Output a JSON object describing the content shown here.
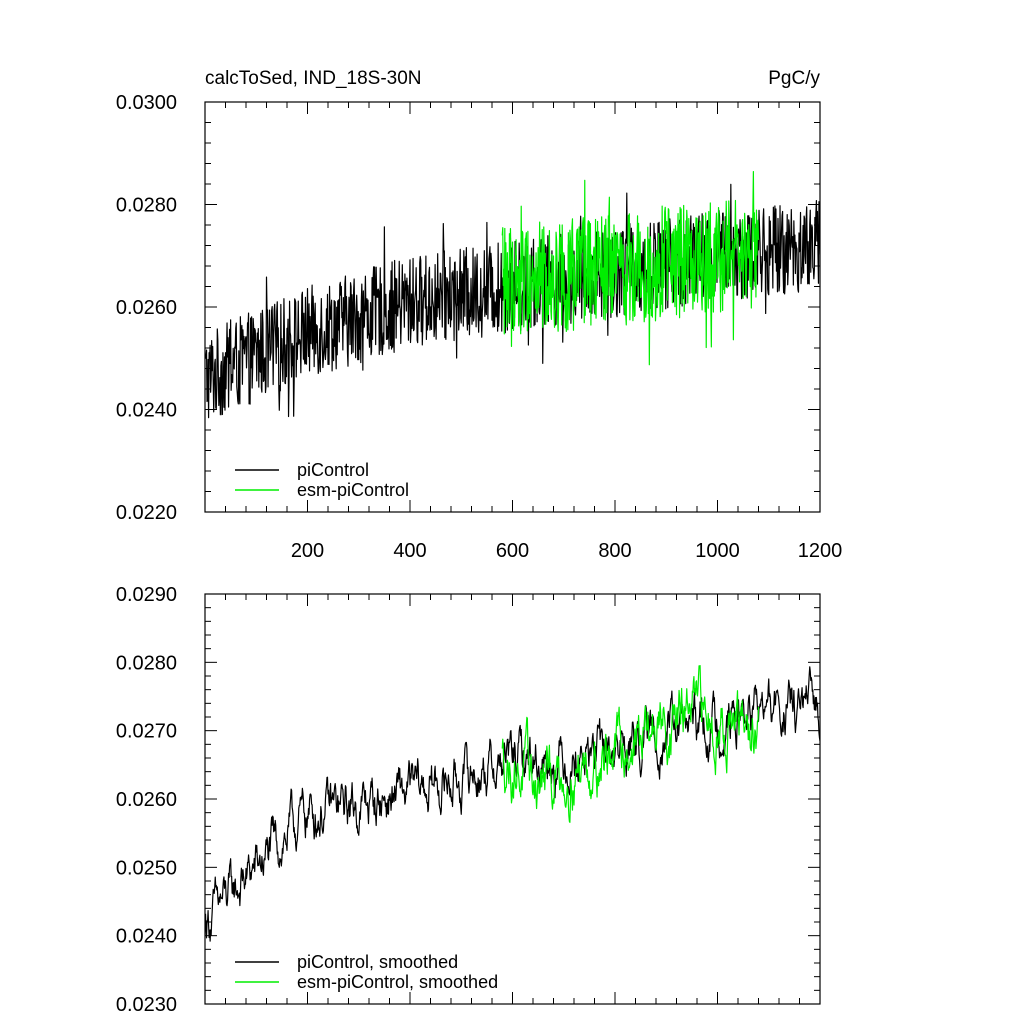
{
  "chart_data": [
    {
      "type": "line",
      "title_left": "calcToSed, IND_18S-30N",
      "title_right": "PgC/y",
      "xlim": [
        0,
        1200
      ],
      "ylim": [
        0.022,
        0.03
      ],
      "x_ticks": [
        200,
        400,
        600,
        800,
        1000,
        1200
      ],
      "y_ticks": [
        "0.0220",
        "0.0240",
        "0.0260",
        "0.0280",
        "0.0300"
      ],
      "legend_position": "bottom-left",
      "series": [
        {
          "name": "piControl",
          "color": "#000000",
          "x_range": [
            1,
            1200
          ],
          "trend": [
            [
              0,
              0.0246
            ],
            [
              200,
              0.0255
            ],
            [
              400,
              0.0261
            ],
            [
              600,
              0.0264
            ],
            [
              800,
              0.0267
            ],
            [
              1000,
              0.027
            ],
            [
              1200,
              0.0272
            ]
          ],
          "noise_amplitude": 0.0009
        },
        {
          "name": "esm-piControl",
          "color": "#00ee00",
          "x_range": [
            580,
            1080
          ],
          "trend": [
            [
              580,
              0.0265
            ],
            [
              800,
              0.0267
            ],
            [
              1000,
              0.027
            ],
            [
              1080,
              0.027
            ]
          ],
          "noise_amplitude": 0.0011
        }
      ]
    },
    {
      "type": "line",
      "xlim": [
        0,
        1200
      ],
      "ylim": [
        0.023,
        0.029
      ],
      "x_ticks": [
        200,
        400,
        600,
        800,
        1000,
        1200
      ],
      "y_ticks": [
        "0.0230",
        "0.0240",
        "0.0250",
        "0.0260",
        "0.0270",
        "0.0280",
        "0.0290"
      ],
      "legend_position": "bottom-left",
      "series": [
        {
          "name": "piControl, smoothed",
          "color": "#000000",
          "x_range": [
            1,
            1200
          ],
          "trend": [
            [
              0,
              0.0242
            ],
            [
              100,
              0.025
            ],
            [
              200,
              0.0258
            ],
            [
              300,
              0.0259
            ],
            [
              400,
              0.0261
            ],
            [
              500,
              0.0263
            ],
            [
              600,
              0.0266
            ],
            [
              700,
              0.0266
            ],
            [
              800,
              0.0267
            ],
            [
              900,
              0.027
            ],
            [
              1000,
              0.0271
            ],
            [
              1100,
              0.0273
            ],
            [
              1200,
              0.0273
            ]
          ],
          "noise_amplitude": 0.0003
        },
        {
          "name": "esm-piControl, smoothed",
          "color": "#00ee00",
          "x_range": [
            580,
            1080
          ],
          "trend": [
            [
              580,
              0.0266
            ],
            [
              650,
              0.0262
            ],
            [
              800,
              0.0267
            ],
            [
              950,
              0.0273
            ],
            [
              1080,
              0.0269
            ]
          ],
          "noise_amplitude": 0.00035
        }
      ]
    }
  ]
}
